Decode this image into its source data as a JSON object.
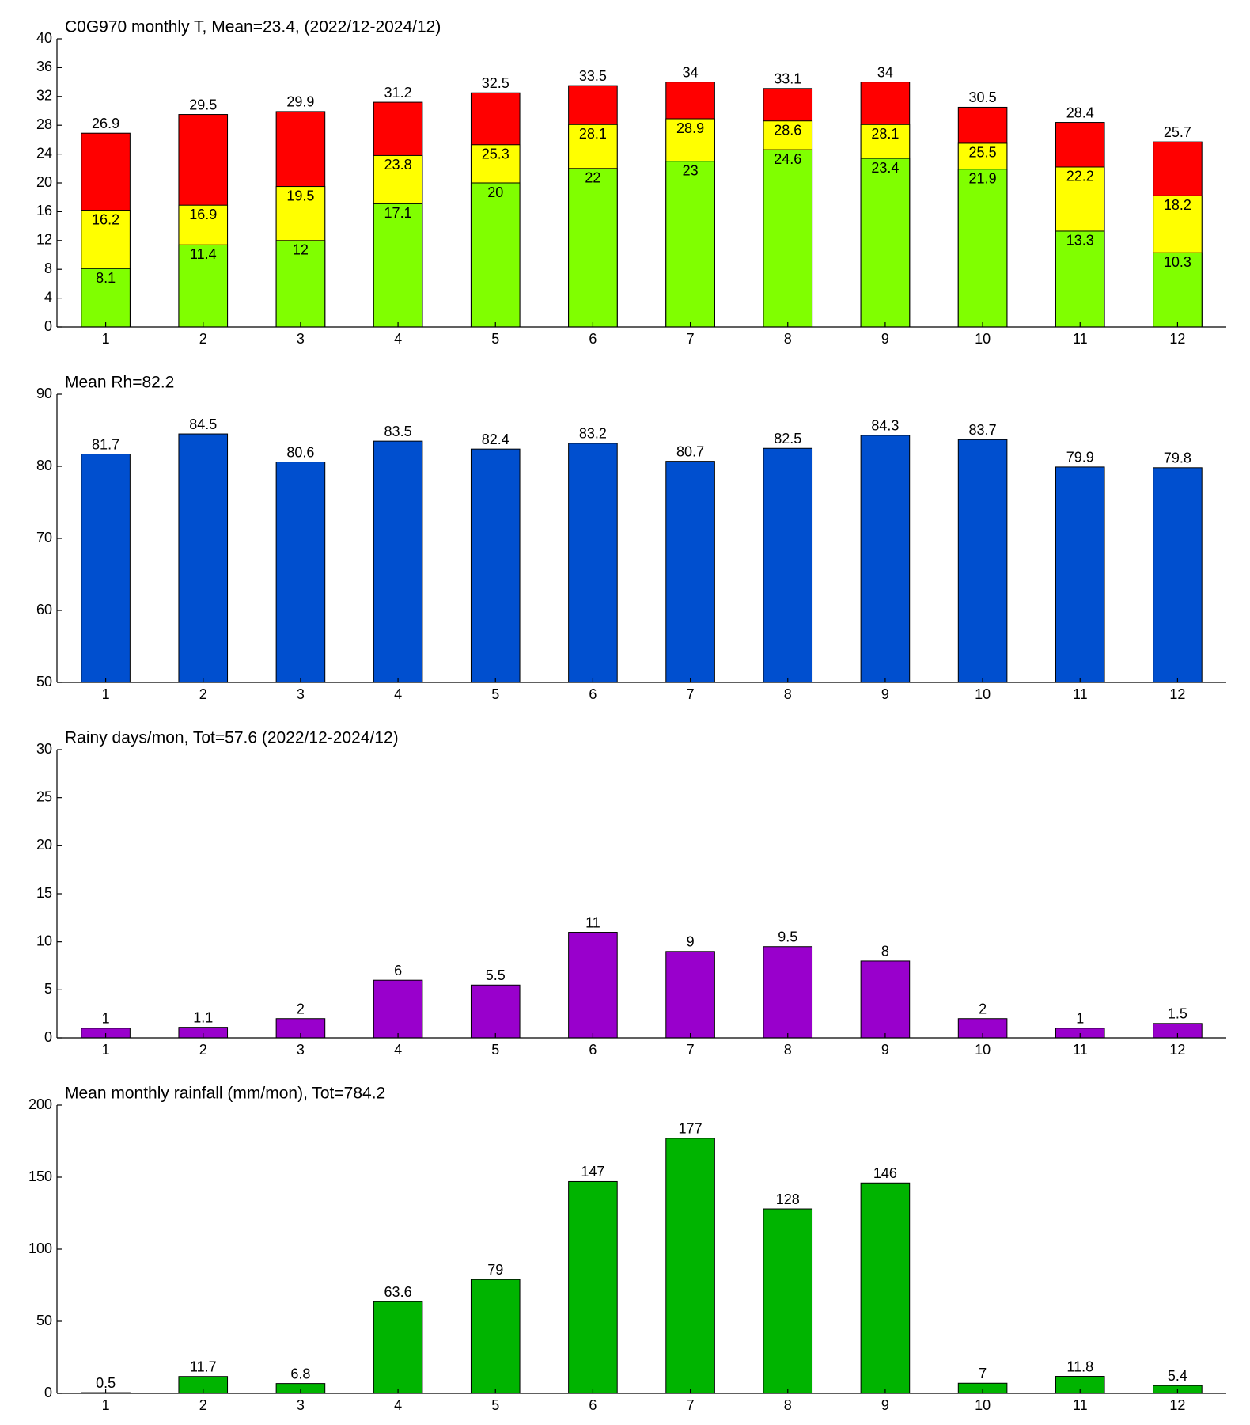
{
  "chart_data": [
    {
      "type": "bar",
      "title": "C0G970 monthly T, Mean=23.4, (2022/12-2024/12)",
      "categories": [
        1,
        2,
        3,
        4,
        5,
        6,
        7,
        8,
        9,
        10,
        11,
        12
      ],
      "series": [
        {
          "color": "#80ff00",
          "values": [
            8.1,
            11.4,
            12,
            17.1,
            20,
            22,
            23,
            24.6,
            23.4,
            21.9,
            13.3,
            10.3
          ]
        },
        {
          "color": "#ffff00",
          "values": [
            16.2,
            16.9,
            19.5,
            23.8,
            25.3,
            28.1,
            28.9,
            28.6,
            28.1,
            25.5,
            22.2,
            18.2
          ]
        },
        {
          "color": "#ff0000",
          "values": [
            26.9,
            29.5,
            29.9,
            31.2,
            32.5,
            33.5,
            34,
            33.1,
            34,
            30.5,
            28.4,
            25.7
          ]
        }
      ],
      "ylim": [
        0,
        40
      ],
      "yticks": [
        0,
        4,
        8,
        12,
        16,
        20,
        24,
        28,
        32,
        36,
        40
      ]
    },
    {
      "type": "bar",
      "title": "Mean Rh=82.2",
      "categories": [
        1,
        2,
        3,
        4,
        5,
        6,
        7,
        8,
        9,
        10,
        11,
        12
      ],
      "series": [
        {
          "color": "#004fcf",
          "values": [
            81.7,
            84.5,
            80.6,
            83.5,
            82.4,
            83.2,
            80.7,
            82.5,
            84.3,
            83.7,
            79.9,
            79.8
          ]
        }
      ],
      "ylim": [
        50,
        90
      ],
      "yticks": [
        50,
        60,
        70,
        80,
        90
      ]
    },
    {
      "type": "bar",
      "title": "Rainy days/mon, Tot=57.6 (2022/12-2024/12)",
      "categories": [
        1,
        2,
        3,
        4,
        5,
        6,
        7,
        8,
        9,
        10,
        11,
        12
      ],
      "series": [
        {
          "color": "#9900cc",
          "values": [
            1,
            1.1,
            2,
            6,
            5.5,
            11,
            9,
            9.5,
            8,
            2,
            1,
            1.5
          ]
        }
      ],
      "ylim": [
        0,
        30
      ],
      "yticks": [
        0,
        5,
        10,
        15,
        20,
        25,
        30
      ]
    },
    {
      "type": "bar",
      "title": "Mean monthly rainfall (mm/mon), Tot=784.2",
      "categories": [
        1,
        2,
        3,
        4,
        5,
        6,
        7,
        8,
        9,
        10,
        11,
        12
      ],
      "series": [
        {
          "color": "#00b400",
          "values": [
            0.5,
            11.7,
            6.8,
            63.6,
            79,
            147,
            177,
            128,
            146,
            7,
            11.8,
            5.4
          ]
        }
      ],
      "ylim": [
        0,
        200
      ],
      "yticks": [
        0,
        50,
        100,
        150,
        200
      ]
    }
  ]
}
